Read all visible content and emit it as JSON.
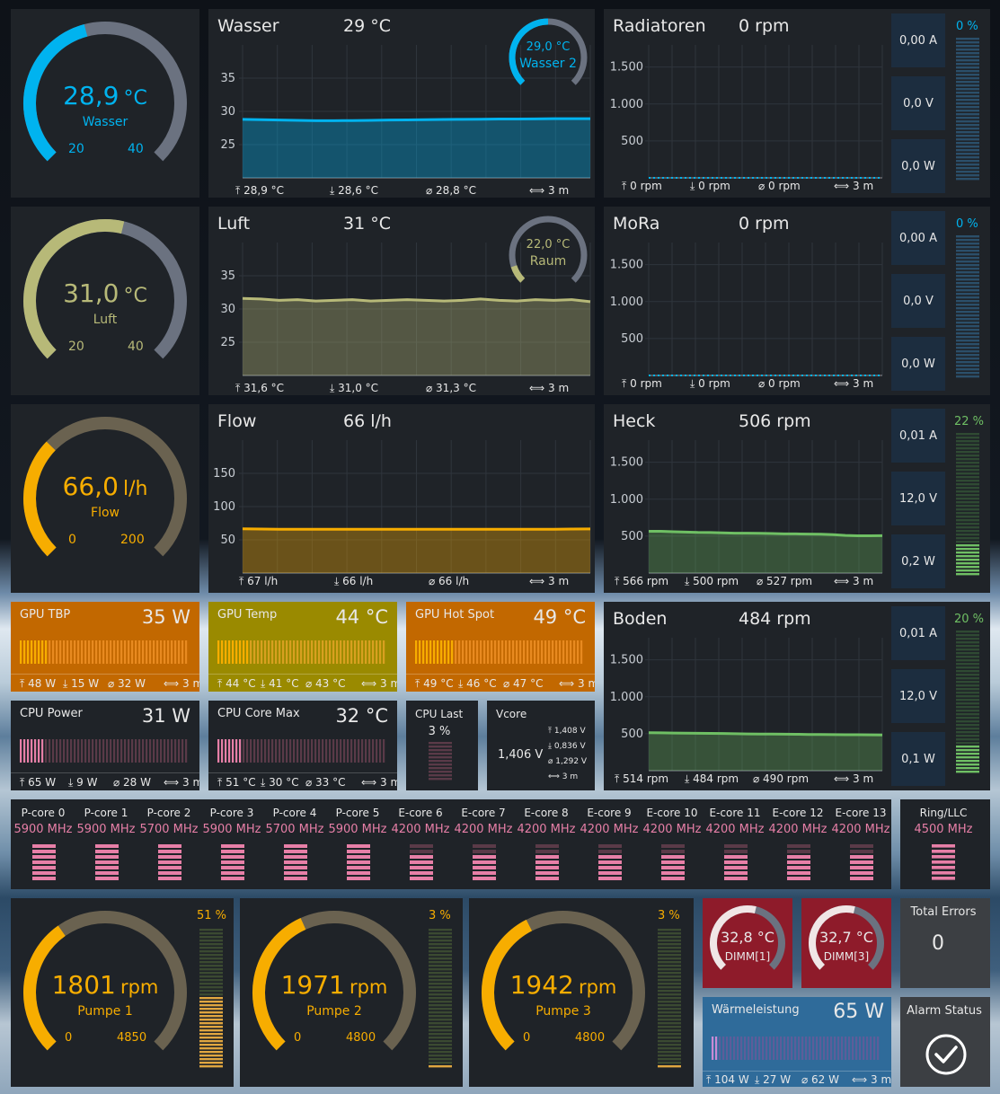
{
  "colors": {
    "tile": "#1f2328",
    "blue": "#00b3ef",
    "olive": "#b7b978",
    "amber": "#f7ad00",
    "green": "#6fbf64",
    "pink": "#e77fa7",
    "track": "#6b7280"
  },
  "sensors": {
    "wasser": {
      "gauge_value": "28,9",
      "unit": "°C",
      "label": "Wasser",
      "min": "20",
      "max": "40",
      "level": 0.445,
      "title": "Wasser",
      "current": "29 °C",
      "ticks": [
        "35",
        "30",
        "25"
      ],
      "range": [
        20,
        40
      ],
      "series": [
        28.8,
        28.75,
        28.7,
        28.65,
        28.6,
        28.6,
        28.62,
        28.65,
        28.7,
        28.72,
        28.75,
        28.78,
        28.8,
        28.82,
        28.85,
        28.85,
        28.87,
        28.9,
        28.9,
        28.9
      ],
      "sub_value": "29,0 °C",
      "sub_label": "Wasser 2",
      "sub_level": 0.5,
      "max_text": "28,9 °C",
      "min_text": "28,6 °C",
      "avg_text": "28,8 °C",
      "span": "3 m"
    },
    "luft": {
      "gauge_value": "31,0",
      "unit": "°C",
      "label": "Luft",
      "min": "20",
      "max": "40",
      "level": 0.55,
      "title": "Luft",
      "current": "31 °C",
      "ticks": [
        "35",
        "30",
        "25"
      ],
      "range": [
        20,
        40
      ],
      "series": [
        31.6,
        31.5,
        31.3,
        31.4,
        31.2,
        31.3,
        31.4,
        31.2,
        31.3,
        31.4,
        31.3,
        31.2,
        31.3,
        31.5,
        31.3,
        31.2,
        31.4,
        31.3,
        31.4,
        31.1
      ],
      "sub_value": "22,0 °C",
      "sub_label": "Raum",
      "sub_level": 0.1,
      "max_text": "31,6 °C",
      "min_text": "31,0 °C",
      "avg_text": "31,3 °C",
      "span": "3 m"
    },
    "flow": {
      "gauge_value": "66,0",
      "unit": "l/h",
      "label": "Flow",
      "min": "0",
      "max": "200",
      "level": 0.33,
      "title": "Flow",
      "current": "66 l/h",
      "ticks": [
        "150",
        "100",
        "50"
      ],
      "range": [
        0,
        200
      ],
      "series": [
        66.5,
        66.2,
        66,
        66,
        66,
        66,
        66,
        66,
        66,
        66,
        66,
        66,
        66,
        66,
        66,
        66,
        66,
        66,
        66.2,
        66.3
      ],
      "max_text": "67 l/h",
      "min_text": "66 l/h",
      "avg_text": "66 l/h",
      "span": "3 m"
    }
  },
  "fans": [
    {
      "title": "Radiatoren",
      "rpm": "0 rpm",
      "pct": "0 %",
      "level": 0,
      "amp": "0,00 A",
      "volt": "0,0 V",
      "watt": "0,0 W",
      "series": [
        0,
        0,
        0,
        0,
        0,
        0,
        0,
        0,
        0,
        0,
        0,
        0,
        0,
        0,
        0,
        0,
        0,
        0,
        0,
        0
      ],
      "max_text": "0 rpm",
      "min_text": "0 rpm",
      "avg_text": "0 rpm",
      "span": "3 m",
      "ticks": [
        "1.500",
        "1.000",
        "500"
      ]
    },
    {
      "title": "MoRa",
      "rpm": "0 rpm",
      "pct": "0 %",
      "level": 0,
      "amp": "0,00 A",
      "volt": "0,0 V",
      "watt": "0,0 W",
      "series": [
        0,
        0,
        0,
        0,
        0,
        0,
        0,
        0,
        0,
        0,
        0,
        0,
        0,
        0,
        0,
        0,
        0,
        0,
        0,
        0
      ],
      "max_text": "0 rpm",
      "min_text": "0 rpm",
      "avg_text": "0 rpm",
      "span": "3 m",
      "ticks": [
        "1.500",
        "1.000",
        "500"
      ]
    },
    {
      "title": "Heck",
      "rpm": "506 rpm",
      "pct": "22 %",
      "level": 0.22,
      "amp": "0,01 A",
      "volt": "12,0 V",
      "watt": "0,2 W",
      "series": [
        566,
        565,
        560,
        555,
        550,
        548,
        545,
        540,
        540,
        538,
        535,
        530,
        530,
        528,
        525,
        520,
        510,
        505,
        505,
        506
      ],
      "max_text": "566 rpm",
      "min_text": "500 rpm",
      "avg_text": "527 rpm",
      "span": "3 m",
      "ticks": [
        "1.500",
        "1.000",
        "500"
      ]
    },
    {
      "title": "Boden",
      "rpm": "484 rpm",
      "pct": "20 %",
      "level": 0.2,
      "amp": "0,01 A",
      "volt": "12,0 V",
      "watt": "0,1 W",
      "series": [
        514,
        512,
        510,
        508,
        506,
        505,
        503,
        500,
        498,
        496,
        495,
        494,
        492,
        490,
        490,
        488,
        487,
        486,
        485,
        484
      ],
      "max_text": "514 rpm",
      "min_text": "484 rpm",
      "avg_text": "490 rpm",
      "span": "3 m",
      "ticks": [
        "1.500",
        "1.000",
        "500"
      ]
    }
  ],
  "bars": [
    {
      "title": "GPU TBP",
      "value": "35 W",
      "level": 0.16,
      "max_text": "48 W",
      "min_text": "15 W",
      "avg_text": "32 W",
      "span": "3 m"
    },
    {
      "title": "GPU Temp",
      "value": "44 °C",
      "level": 0.2,
      "max_text": "44 °C",
      "min_text": "41 °C",
      "avg_text": "43 °C",
      "span": "3 m"
    },
    {
      "title": "GPU Hot Spot",
      "value": "49 °C",
      "level": 0.23,
      "max_text": "49 °C",
      "min_text": "46 °C",
      "avg_text": "47 °C",
      "span": "3 m"
    },
    {
      "title": "CPU Power",
      "value": "31 W",
      "level": 0.14,
      "max_text": "65 W",
      "min_text": "9 W",
      "avg_text": "28 W",
      "span": "3 m"
    },
    {
      "title": "CPU Core Max",
      "value": "32 °C",
      "level": 0.14,
      "max_text": "51 °C",
      "min_text": "30 °C",
      "avg_text": "33 °C",
      "span": "3 m"
    }
  ],
  "cpu_last": {
    "title": "CPU Last",
    "value": "3 %",
    "level": 0.03
  },
  "vcore": {
    "title": "Vcore",
    "value": "1,406 V",
    "max_text": "1,408 V",
    "min_text": "0,836 V",
    "avg_text": "1,292 V",
    "span": "3 m"
  },
  "cores": [
    {
      "name": "P-core 0",
      "mhz": "5900 MHz",
      "level": 1
    },
    {
      "name": "P-core 1",
      "mhz": "5900 MHz",
      "level": 1
    },
    {
      "name": "P-core 2",
      "mhz": "5700 MHz",
      "level": 1
    },
    {
      "name": "P-core 3",
      "mhz": "5900 MHz",
      "level": 1
    },
    {
      "name": "P-core 4",
      "mhz": "5700 MHz",
      "level": 1
    },
    {
      "name": "P-core 5",
      "mhz": "5900 MHz",
      "level": 1
    },
    {
      "name": "E-core 6",
      "mhz": "4200 MHz",
      "level": 0.71
    },
    {
      "name": "E-core 7",
      "mhz": "4200 MHz",
      "level": 0.71
    },
    {
      "name": "E-core 8",
      "mhz": "4200 MHz",
      "level": 0.71
    },
    {
      "name": "E-core 9",
      "mhz": "4200 MHz",
      "level": 0.71
    },
    {
      "name": "E-core 10",
      "mhz": "4200 MHz",
      "level": 0.71
    },
    {
      "name": "E-core 11",
      "mhz": "4200 MHz",
      "level": 0.71
    },
    {
      "name": "E-core 12",
      "mhz": "4200 MHz",
      "level": 0.71
    },
    {
      "name": "E-core 13",
      "mhz": "4200 MHz",
      "level": 0.71
    }
  ],
  "ring": {
    "name": "Ring/LLC",
    "mhz": "4500 MHz",
    "level": 1
  },
  "pumps": [
    {
      "value": "1801",
      "unit": "rpm",
      "label": "Pumpe 1",
      "min": "0",
      "max": "4850",
      "level": 0.37,
      "pct": "51 %",
      "pct_level": 0.51
    },
    {
      "value": "1971",
      "unit": "rpm",
      "label": "Pumpe 2",
      "min": "0",
      "max": "4800",
      "level": 0.41,
      "pct": "3 %",
      "pct_level": 0.03
    },
    {
      "value": "1942",
      "unit": "rpm",
      "label": "Pumpe 3",
      "min": "0",
      "max": "4800",
      "level": 0.4,
      "pct": "3 %",
      "pct_level": 0.03
    }
  ],
  "dimms": [
    {
      "value": "32,8 °C",
      "label": "DIMM[1]",
      "level": 0.55
    },
    {
      "value": "32,7 °C",
      "label": "DIMM[3]",
      "level": 0.55
    }
  ],
  "errors": {
    "title": "Total Errors",
    "value": "0"
  },
  "heat": {
    "title": "Wärmeleistung",
    "value": "65 W",
    "level": 0.05,
    "max_text": "104 W",
    "min_text": "27 W",
    "avg_text": "62 W",
    "span": "3 m"
  },
  "alarm": {
    "title": "Alarm Status"
  }
}
